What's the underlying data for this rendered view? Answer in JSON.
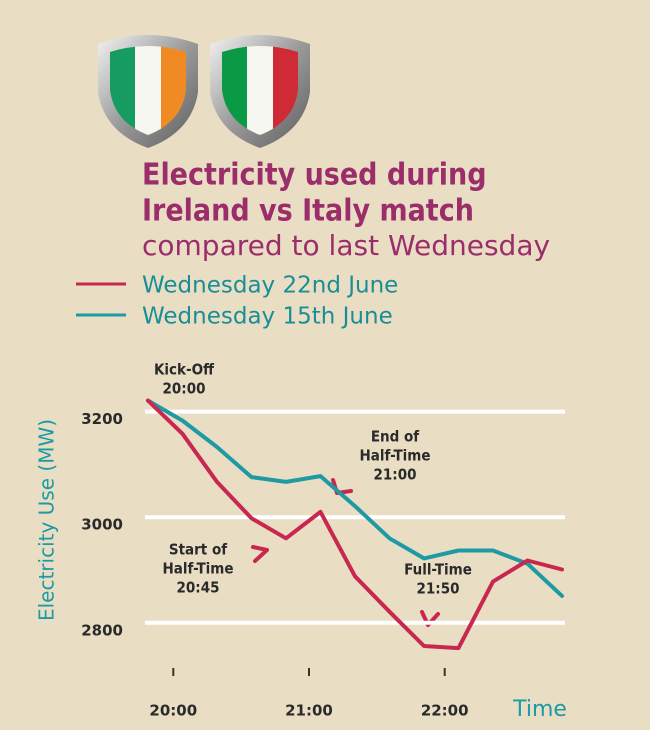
{
  "chart_data": {
    "type": "line",
    "title": [
      "Electricity used during",
      "Ireland vs Italy match"
    ],
    "subtitle": "compared to last Wednesday",
    "y_label": "Electricity Use (MW)",
    "x_label": "Time",
    "x": [
      0,
      15,
      30,
      45,
      60,
      75,
      90,
      105,
      120,
      135,
      150,
      165,
      180
    ],
    "xlim": [
      0,
      180
    ],
    "xticks": [
      {
        "value": 11,
        "label": "20:00"
      },
      {
        "value": 70,
        "label": "21:00"
      },
      {
        "value": 129,
        "label": "22:00"
      }
    ],
    "ylim": [
      2720,
      3260
    ],
    "yticks": [
      2800,
      3000,
      3200
    ],
    "grid": true,
    "series": [
      {
        "name": "Wednesday 22nd June",
        "color": "#c8284f",
        "values": [
          3221,
          3158,
          3067,
          2998,
          2960,
          3010,
          2888,
          2821,
          2756,
          2752,
          2878,
          2918,
          2901
        ]
      },
      {
        "name": "Wednesday 15th June",
        "color": "#1d9aa4",
        "values": [
          3221,
          3183,
          3133,
          3076,
          3067,
          3078,
          3021,
          2960,
          2922,
          2937,
          2937,
          2912,
          2851
        ]
      }
    ],
    "annotations": [
      {
        "lines": [
          "Kick-Off",
          "20:00"
        ]
      },
      {
        "lines": [
          "End of",
          "Half-Time",
          "21:00"
        ]
      },
      {
        "lines": [
          "Start of",
          "Half-Time",
          "20:45"
        ]
      },
      {
        "lines": [
          "Full-Time",
          "21:50"
        ]
      }
    ]
  }
}
